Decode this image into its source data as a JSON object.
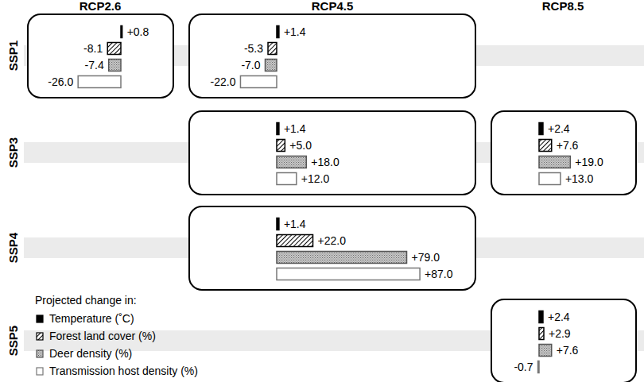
{
  "chart_data": {
    "type": "bar",
    "orientation": "horizontal",
    "data_labels": true,
    "tick_labels": false,
    "columns": [
      "RCP2.6",
      "RCP4.5",
      "RCP8.5"
    ],
    "rows": [
      "SSP1",
      "SSP3",
      "SSP4",
      "SSP5"
    ],
    "legend_title": "Projected change in:",
    "series": [
      {
        "name": "Temperature (˚C)",
        "color": "#000000",
        "marker": "solid"
      },
      {
        "name": "Forest land cover (%)",
        "color": "#000000",
        "marker": "hatch"
      },
      {
        "name": "Deer density (%)",
        "color": "#555555",
        "marker": "dots"
      },
      {
        "name": "Transmission host density (%)",
        "color": "#777777",
        "marker": "hollow"
      }
    ],
    "panels": [
      {
        "row": "SSP1",
        "column": "RCP2.6",
        "values": [
          0.8,
          -8.1,
          -7.4,
          -26.0
        ],
        "value_labels": [
          "+0.8",
          "-8.1",
          "-7.4",
          "-26.0"
        ]
      },
      {
        "row": "SSP1",
        "column": "RCP4.5",
        "values": [
          1.4,
          -5.3,
          -7.0,
          -22.0
        ],
        "value_labels": [
          "+1.4",
          "-5.3",
          "-7.0",
          "-22.0"
        ]
      },
      {
        "row": "SSP3",
        "column": "RCP4.5",
        "values": [
          1.4,
          5.0,
          18.0,
          12.0
        ],
        "value_labels": [
          "+1.4",
          "+5.0",
          "+18.0",
          "+12.0"
        ]
      },
      {
        "row": "SSP3",
        "column": "RCP8.5",
        "values": [
          2.4,
          7.6,
          19.0,
          13.0
        ],
        "value_labels": [
          "+2.4",
          "+7.6",
          "+19.0",
          "+13.0"
        ]
      },
      {
        "row": "SSP4",
        "column": "RCP4.5",
        "values": [
          1.4,
          22.0,
          79.0,
          87.0
        ],
        "value_labels": [
          "+1.4",
          "+22.0",
          "+79.0",
          "+87.0"
        ]
      },
      {
        "row": "SSP5",
        "column": "RCP8.5",
        "values": [
          2.4,
          2.9,
          7.6,
          -0.7
        ],
        "value_labels": [
          "+2.4",
          "+2.9",
          "+7.6",
          "-0.7"
        ]
      }
    ]
  }
}
